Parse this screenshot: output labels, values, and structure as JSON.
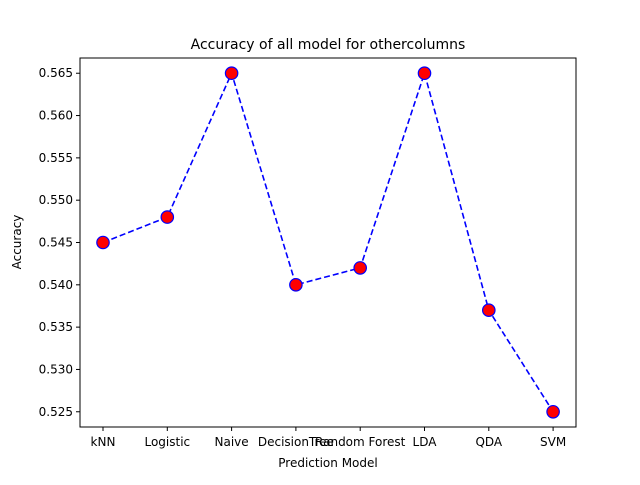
{
  "chart_data": {
    "type": "line",
    "title": "Accuracy of all model for othercolumns",
    "xlabel": "Prediction Model",
    "ylabel": "Accuracy",
    "categories": [
      "kNN",
      "Logistic",
      "Naive",
      "DecisionTree",
      "Random Forest",
      "LDA",
      "QDA",
      "SVM"
    ],
    "series": [
      {
        "values": [
          0.545,
          0.548,
          0.565,
          0.54,
          0.542,
          0.565,
          0.537,
          0.525
        ],
        "line_color": "#0000ff",
        "line_style": "dashed",
        "marker": "circle",
        "marker_face": "#ff0000",
        "marker_edge": "#0000ff"
      }
    ],
    "ylim": [
      0.5232,
      0.5668
    ],
    "yticks": [
      0.525,
      0.53,
      0.535,
      0.54,
      0.545,
      0.55,
      0.555,
      0.56,
      0.565
    ],
    "ytick_labels": [
      "0.525",
      "0.530",
      "0.535",
      "0.540",
      "0.545",
      "0.550",
      "0.555",
      "0.560",
      "0.565"
    ],
    "grid": false,
    "legend": "none"
  }
}
